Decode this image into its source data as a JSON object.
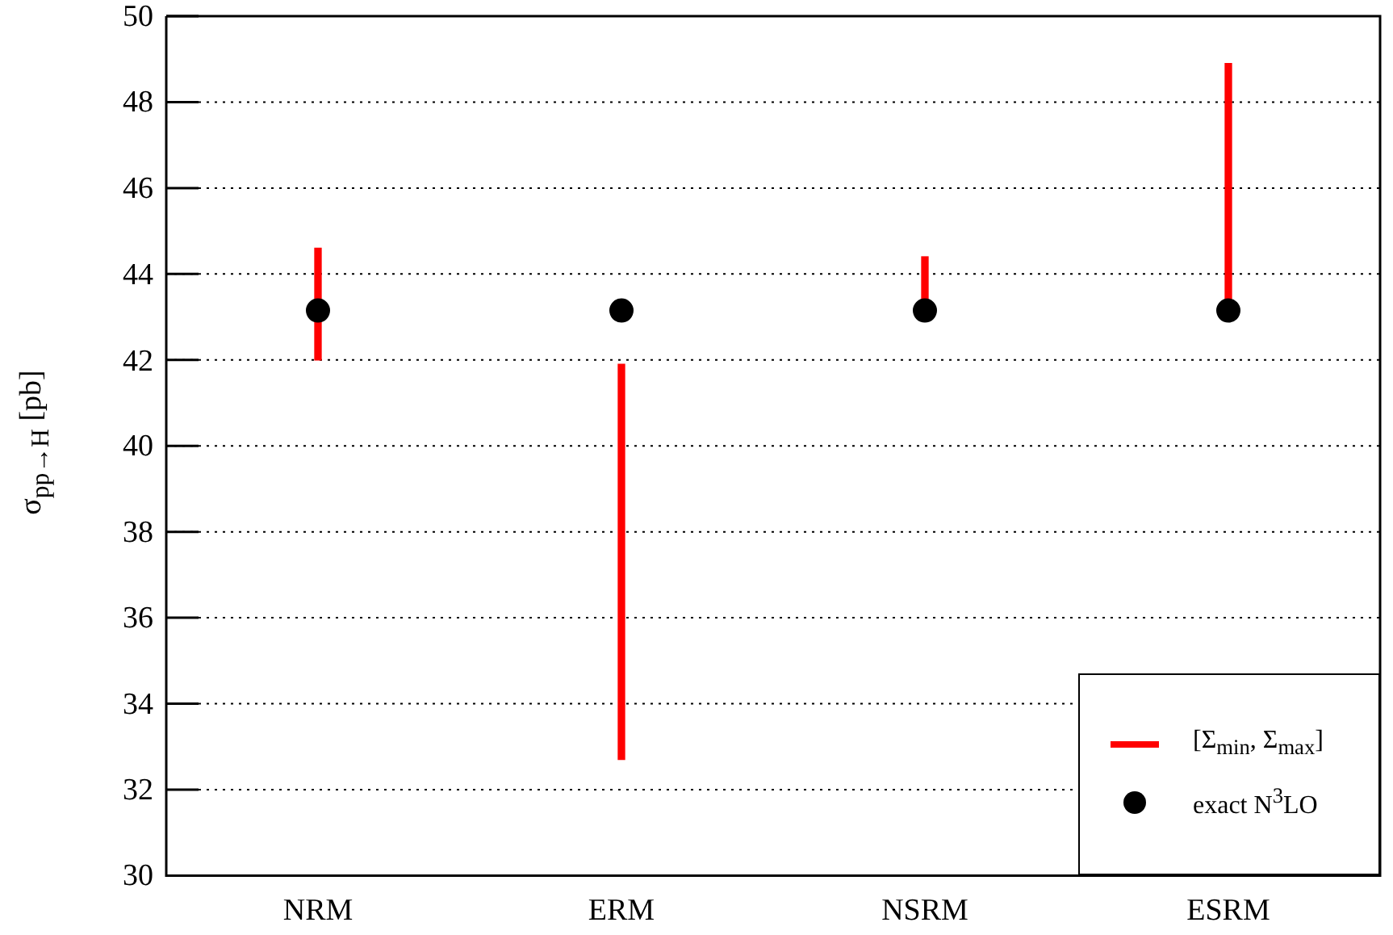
{
  "chart_data": {
    "type": "bar",
    "ylabel": "σ$_{pp→H}$ [pb]",
    "categories": [
      "NRM",
      "ERM",
      "NSRM",
      "ESRM"
    ],
    "series": [
      {
        "name": "[Σ$_{min}$, Σ$_{max}$]",
        "color": "#ff0000",
        "base": [
          42.0,
          32.7,
          43.15,
          43.15
        ],
        "values": [
          2.6,
          9.2,
          1.25,
          5.75
        ]
      },
      {
        "name": "exact N$^{3}$LO",
        "type": "scatter",
        "color": "#000000",
        "values": [
          43.15,
          43.15,
          43.15,
          43.15
        ]
      }
    ],
    "ylim": [
      30,
      50
    ],
    "yticks": [
      30,
      32,
      34,
      36,
      38,
      40,
      42,
      44,
      46,
      48,
      50
    ],
    "grid": "y",
    "legend": "bottom right",
    "marker": "circle"
  }
}
